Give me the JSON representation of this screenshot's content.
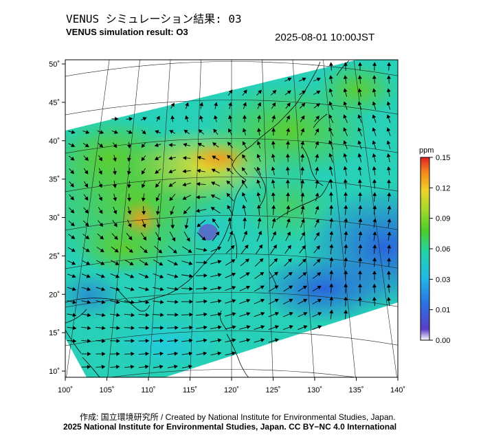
{
  "header": {
    "title_jp": "VENUS シミュレーション結果: 03",
    "title_en": "VENUS simulation result: O3",
    "timestamp": "2025-08-01 10:00JST"
  },
  "map": {
    "lon_range": [
      100,
      140
    ],
    "lat_range": [
      10,
      50
    ],
    "lon_ticks": [
      "100˚",
      "105˚",
      "110˚",
      "115˚",
      "120˚",
      "125˚",
      "130˚",
      "135˚",
      "140˚"
    ],
    "lat_ticks": [
      "10˚",
      "15˚",
      "20˚",
      "25˚",
      "30˚",
      "35˚",
      "40˚",
      "45˚",
      "50˚"
    ],
    "field": "ozone concentration with surface wind vectors",
    "features": [
      "typhoon-vortex",
      "coastlines",
      "lat-lon graticule"
    ]
  },
  "colorbar": {
    "unit": "ppm",
    "ticks": [
      "0.15",
      "0.12",
      "0.09",
      "0.06",
      "0.03",
      "0.01",
      "0.00"
    ],
    "colors": [
      "#e8202a",
      "#f58e1a",
      "#ecdc2a",
      "#5ecd2c",
      "#26d3b8",
      "#2e8fe8",
      "#4a3cc0",
      "#ffffff"
    ]
  },
  "footer": {
    "credit_line1": "作成: 国立環境研究所 / Created by National Institute for Environmental Studies, Japan.",
    "credit_line2": "2025 National Institute for Environmental Studies, Japan. CC BY−NC 4.0 International"
  }
}
